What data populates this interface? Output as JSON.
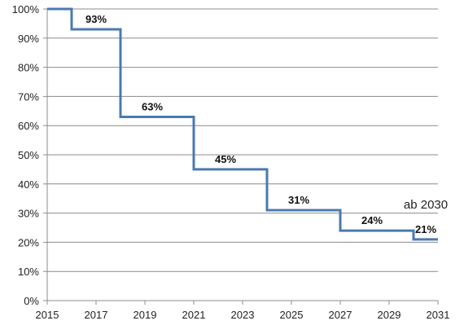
{
  "chart_data": {
    "type": "line",
    "style": "step",
    "title": "",
    "xlabel": "",
    "ylabel": "",
    "xlim": [
      2015,
      2031
    ],
    "ylim": [
      0,
      100
    ],
    "x_ticks": [
      2015,
      2017,
      2019,
      2021,
      2023,
      2025,
      2027,
      2029,
      2031
    ],
    "x_tick_labels": [
      "2015",
      "2017",
      "2019",
      "2021",
      "2023",
      "2025",
      "2027",
      "2029",
      "2031"
    ],
    "y_ticks": [
      0,
      10,
      20,
      30,
      40,
      50,
      60,
      70,
      80,
      90,
      100
    ],
    "y_tick_labels": [
      "0%",
      "10%",
      "20%",
      "30%",
      "40%",
      "50%",
      "60%",
      "70%",
      "80%",
      "90%",
      "100%"
    ],
    "grid": "horizontal",
    "series": [
      {
        "points": [
          {
            "x": 2015,
            "y": 100
          },
          {
            "x": 2016,
            "y": 93
          },
          {
            "x": 2018,
            "y": 63
          },
          {
            "x": 2021,
            "y": 45
          },
          {
            "x": 2024,
            "y": 31
          },
          {
            "x": 2027,
            "y": 24
          },
          {
            "x": 2030,
            "y": 21
          },
          {
            "x": 2031,
            "y": 21
          }
        ]
      }
    ],
    "data_labels": [
      {
        "x": 2017,
        "y": 93,
        "text": "93%"
      },
      {
        "x": 2019.3,
        "y": 63,
        "text": "63%"
      },
      {
        "x": 2022.3,
        "y": 45,
        "text": "45%"
      },
      {
        "x": 2025.3,
        "y": 31,
        "text": "31%"
      },
      {
        "x": 2028.3,
        "y": 24,
        "text": "24%"
      },
      {
        "x": 2030.5,
        "y": 21,
        "text": "21%"
      }
    ],
    "annotations": [
      {
        "x": 2030.5,
        "y": 33,
        "text": "ab 2030"
      }
    ]
  },
  "colors": {
    "line": "#4a7ab0",
    "grid": "#8c8c8c",
    "axis": "#8c8c8c",
    "text": "#222222"
  }
}
